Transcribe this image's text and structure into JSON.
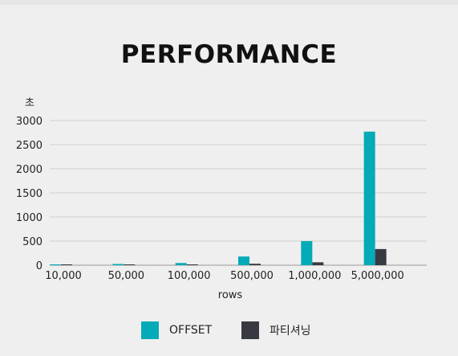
{
  "chart_data": {
    "type": "bar",
    "title": "PERFORMANCE",
    "xlabel": "rows",
    "ylabel": "초",
    "categories": [
      "10,000",
      "50,000",
      "100,000",
      "500,000",
      "1,000,000",
      "5,000,000"
    ],
    "series": [
      {
        "name": "OFFSET",
        "color": "#03aab7",
        "values": [
          5,
          25,
          45,
          180,
          500,
          2770
        ]
      },
      {
        "name": "파티셔닝",
        "color": "#373a40",
        "values": [
          1,
          3,
          5,
          30,
          60,
          335
        ]
      }
    ],
    "ylim": [
      0,
      3000
    ],
    "yticks": [
      "0",
      "500",
      "1000",
      "1500",
      "2000",
      "2500",
      "3000"
    ],
    "grid": true,
    "legend_position": "bottom"
  }
}
